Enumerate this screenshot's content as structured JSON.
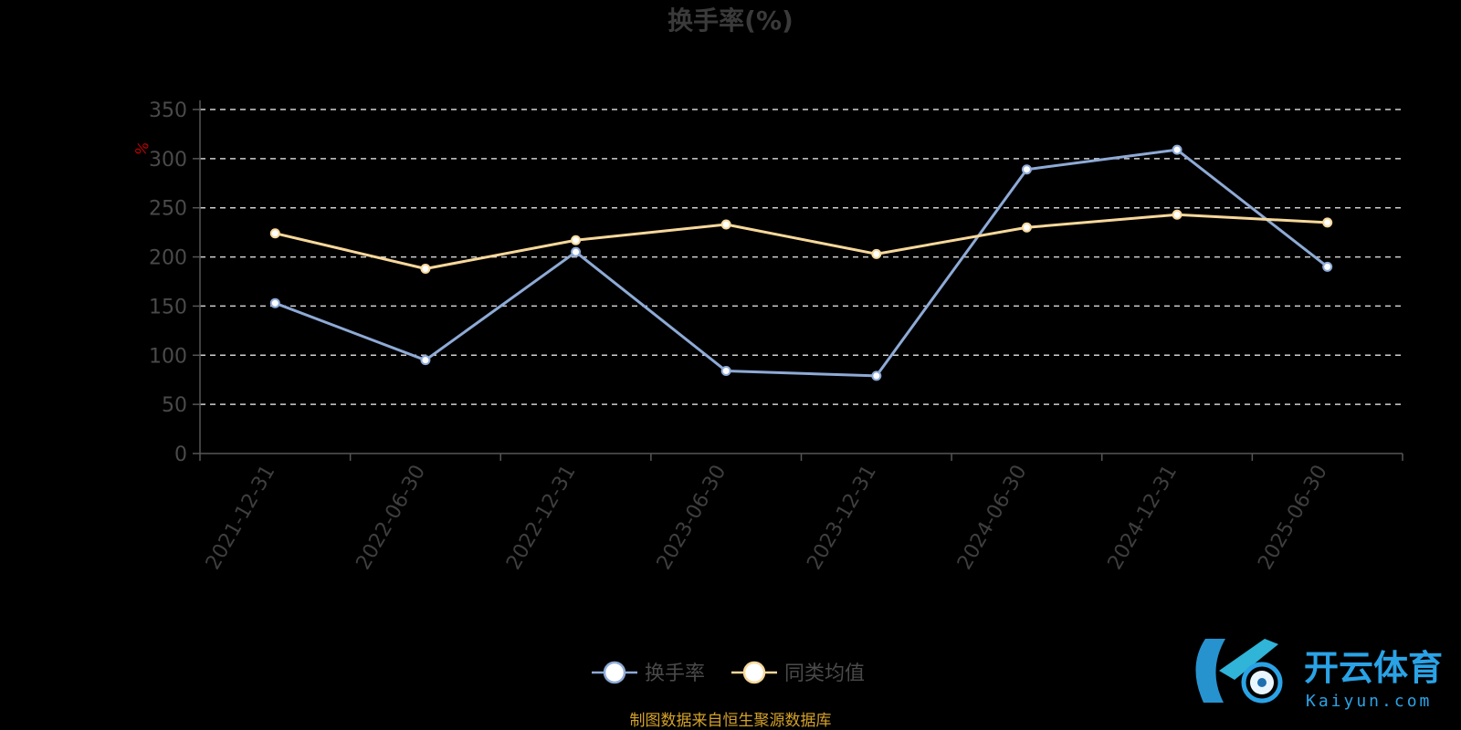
{
  "chart_data": {
    "type": "line",
    "title": "换手率(%)",
    "ylabel": "%",
    "ylim": [
      0,
      350
    ],
    "yticks": [
      0,
      50,
      100,
      150,
      200,
      250,
      300,
      350
    ],
    "grid": true,
    "legend_position": "bottom-center",
    "categories": [
      "2021-12-31",
      "2022-06-30",
      "2022-12-31",
      "2023-06-30",
      "2023-12-31",
      "2024-06-30",
      "2024-12-31",
      "2025-06-30"
    ],
    "series": [
      {
        "name": "换手率",
        "color": "#8eaad6",
        "values": [
          153,
          95,
          205,
          84,
          79,
          289,
          309,
          190
        ]
      },
      {
        "name": "同类均值",
        "color": "#f7d89a",
        "values": [
          224,
          188,
          217,
          233,
          203,
          230,
          243,
          235
        ]
      }
    ],
    "source": "制图数据来自恒生聚源数据库"
  },
  "watermark": {
    "brand": "开云体育",
    "domain": "Kaiyun.com",
    "color": "#2aa3e6"
  }
}
